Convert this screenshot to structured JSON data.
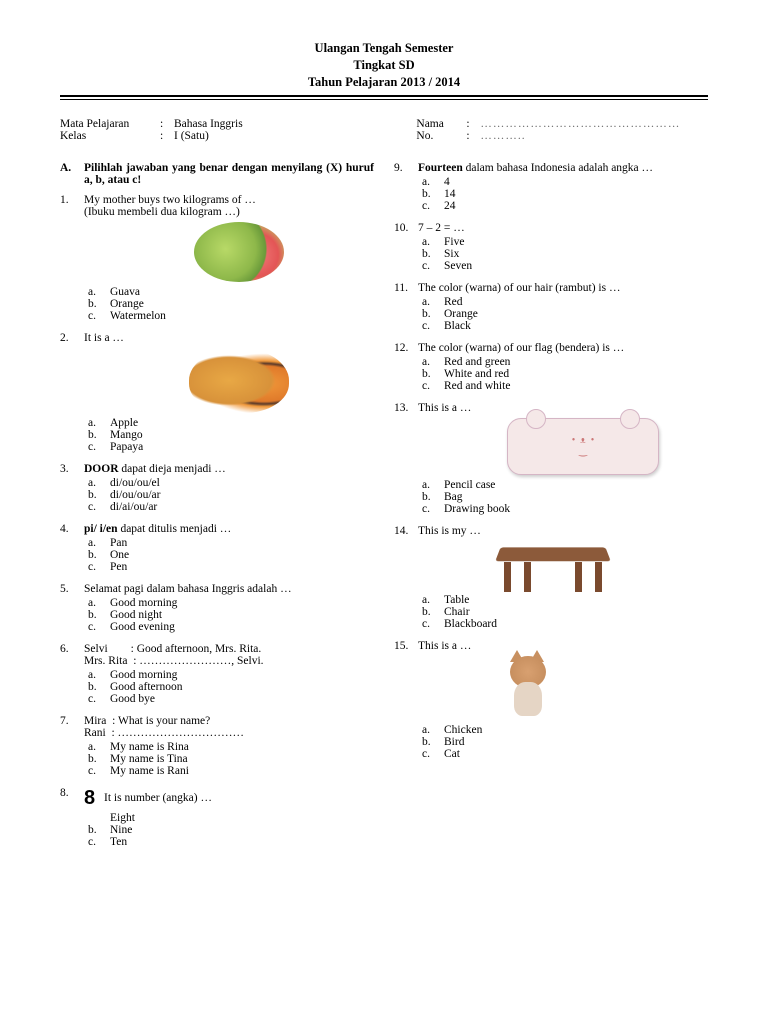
{
  "header": {
    "l1": "Ulangan Tengah Semester",
    "l2": "Tingkat SD",
    "l3": "Tahun Pelajaran 2013 / 2014"
  },
  "info": {
    "subjectLabel": "Mata Pelajaran",
    "subjectValue": "Bahasa Inggris",
    "classLabel": "Kelas",
    "classValue": "I (Satu)",
    "nameLabel": "Nama",
    "nameDots": "…………………………………………",
    "noLabel": "No.",
    "noDots": "……….."
  },
  "section": {
    "letter": "A.",
    "title": "Pilihlah jawaban yang benar dengan menyilang (X) huruf a, b, atau c!"
  },
  "left": [
    {
      "n": "1.",
      "q": "My mother buys two kilograms of …",
      "sub": "(Ibuku membeli dua kilogram …)",
      "img": "guava",
      "opts": [
        "Guava",
        "Orange",
        "Watermelon"
      ]
    },
    {
      "n": "2.",
      "q": "It is a …",
      "img": "papaya",
      "opts": [
        "Apple",
        "Mango",
        "Papaya"
      ]
    },
    {
      "n": "3.",
      "q": "<b>DOOR</b> dapat dieja menjadi …",
      "opts": [
        "di/ou/ou/el",
        "di/ou/ou/ar",
        "di/ai/ou/ar"
      ]
    },
    {
      "n": "4.",
      "q": "<b>pi/ i/en</b> dapat ditulis menjadi …",
      "opts": [
        "Pan",
        "One",
        "Pen"
      ]
    },
    {
      "n": "5.",
      "q": "Selamat pagi dalam bahasa Inggris adalah …",
      "opts": [
        "Good morning",
        "Good night",
        "Good evening"
      ]
    },
    {
      "n": "6.",
      "q": "Selvi&nbsp;&nbsp;&nbsp;&nbsp;&nbsp;&nbsp;&nbsp;&nbsp;: Good afternoon, Mrs. Rita.<br>Mrs. Rita&nbsp;&nbsp;: ……………………, Selvi.",
      "opts": [
        "Good morning",
        "Good afternoon",
        "Good bye"
      ]
    },
    {
      "n": "7.",
      "q": "Mira&nbsp;&nbsp;: What is your name?<br>Rani&nbsp;&nbsp;: ……………………………",
      "opts": [
        "My name is Rina",
        "My name is Tina",
        "My name is Rani"
      ]
    },
    {
      "n": "8.",
      "q": "<span class='big8'>8</span> It is number (angka) …",
      "optsCustom": [
        [
          "&nbsp;",
          "Eight"
        ],
        [
          "b.",
          "Nine"
        ],
        [
          "c.",
          "Ten"
        ]
      ]
    }
  ],
  "right": [
    {
      "n": "9.",
      "q": "<b>Fourteen</b> dalam bahasa Indonesia adalah angka …",
      "opts": [
        "4",
        "14",
        "24"
      ]
    },
    {
      "n": "10.",
      "q": "7 – 2 = …",
      "opts": [
        "Five",
        "Six",
        "Seven"
      ]
    },
    {
      "n": "11.",
      "q": "The color (warna) of our hair (rambut) is …",
      "opts": [
        "Red",
        "Orange",
        "Black"
      ]
    },
    {
      "n": "12.",
      "q": "The color (warna) of our flag (bendera) is …",
      "opts": [
        "Red and green",
        "White and red",
        "Red and white"
      ]
    },
    {
      "n": "13.",
      "q": "This is a …",
      "img": "pencilcase",
      "opts": [
        "Pencil case",
        "Bag",
        "Drawing book"
      ]
    },
    {
      "n": "14.",
      "q": "This is my …",
      "img": "table",
      "opts": [
        "Table",
        "Chair",
        "Blackboard"
      ]
    },
    {
      "n": "15.",
      "q": "This is a …",
      "img": "cat",
      "opts": [
        "Chicken",
        "Bird",
        "Cat"
      ]
    }
  ],
  "letters": [
    "a.",
    "b.",
    "c."
  ]
}
